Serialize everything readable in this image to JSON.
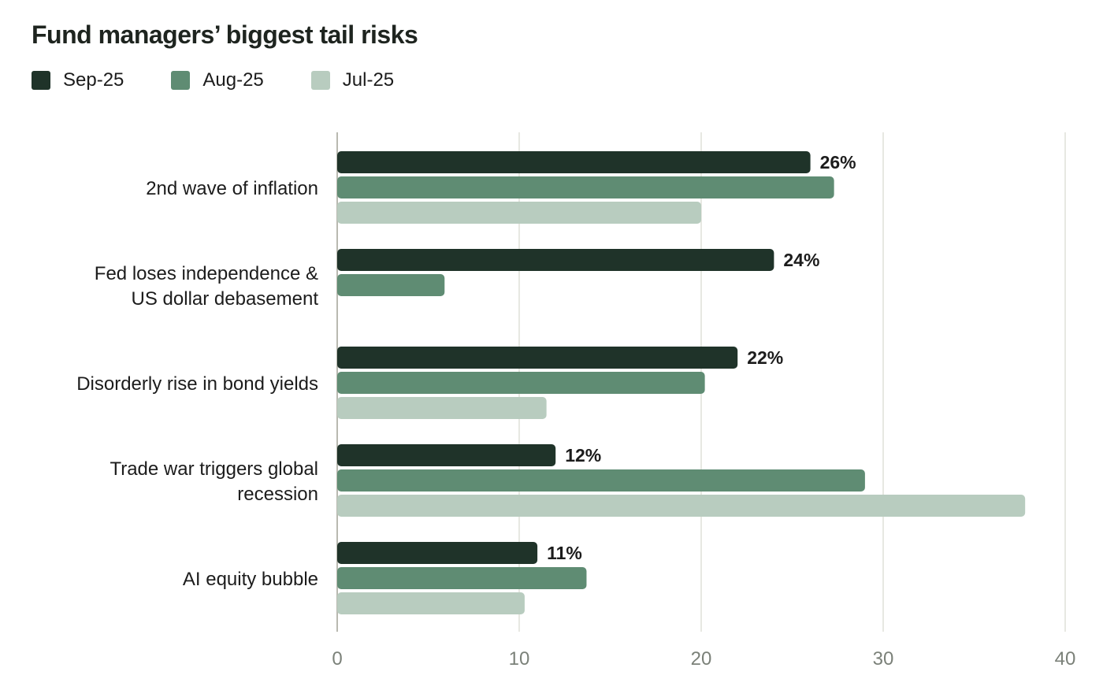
{
  "chart_data": {
    "type": "bar",
    "orientation": "horizontal",
    "title": "Fund managers’ biggest tail risks",
    "categories": [
      [
        "2nd wave of inflation"
      ],
      [
        "Fed loses independence &",
        "US dollar debasement"
      ],
      [
        "Disorderly rise in bond yields"
      ],
      [
        "Trade war triggers global",
        "recession"
      ],
      [
        "AI equity bubble"
      ]
    ],
    "series": [
      {
        "name": "Sep-25",
        "color": "#1f3329",
        "values": [
          26,
          24,
          22,
          12,
          11
        ],
        "data_labels": [
          "26%",
          "24%",
          "22%",
          "12%",
          "11%"
        ]
      },
      {
        "name": "Aug-25",
        "color": "#5f8c73",
        "values": [
          27.3,
          5.9,
          20.2,
          29,
          13.7
        ]
      },
      {
        "name": "Jul-25",
        "color": "#b8ccbf",
        "values": [
          20,
          0,
          11.5,
          37.8,
          10.3
        ]
      }
    ],
    "xlim": [
      0,
      40
    ],
    "xticks": [
      "0",
      "10",
      "20",
      "30",
      "40"
    ],
    "xlabel": "",
    "ylabel": "",
    "grid": "vertical",
    "legend_position": "top-left"
  }
}
